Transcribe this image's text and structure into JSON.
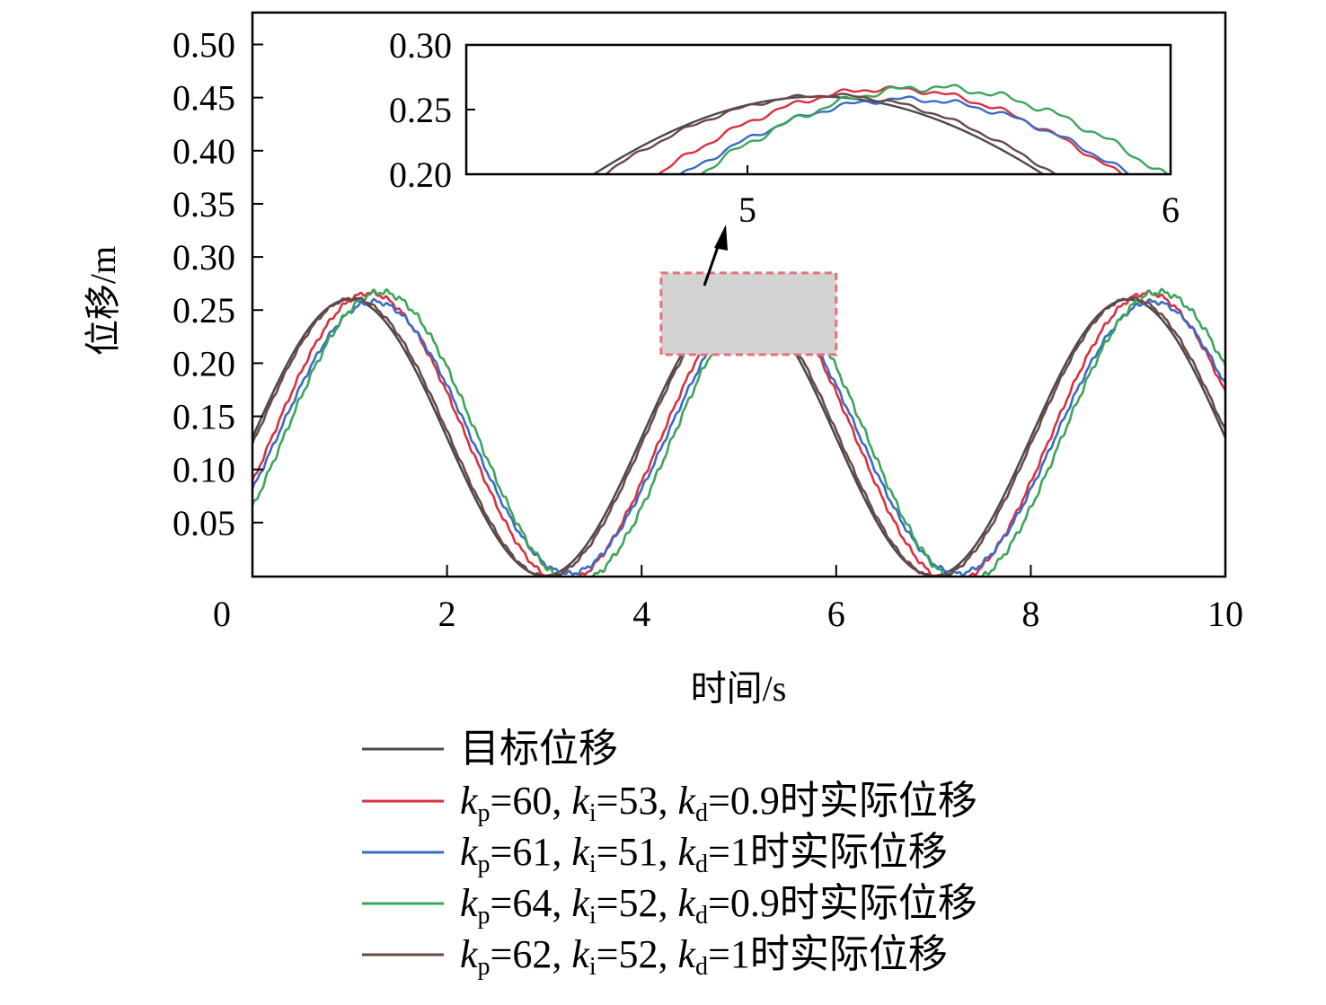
{
  "chart_data": {
    "type": "line",
    "xlabel": "时间/s",
    "ylabel": "位移/m",
    "xlim": [
      0,
      10
    ],
    "ylim": [
      0,
      0.53
    ],
    "xticks": [
      0,
      2,
      4,
      6,
      8,
      10
    ],
    "yticks": [
      0.05,
      0.1,
      0.15,
      0.2,
      0.25,
      0.3,
      0.35,
      0.4,
      0.45,
      0.5
    ],
    "grid": false,
    "legend_position": "bottom",
    "series": [
      {
        "key": "target",
        "name": "目标位移",
        "label_parts": [
          {
            "t": "目标位移"
          }
        ],
        "color": "#4a4a4a",
        "amp": 0.13,
        "phase": 0.0,
        "ripple": 0.0
      },
      {
        "key": "s1",
        "name": "kp=60, ki=53, kd=0.9时实际位移",
        "label_parts": [
          {
            "t": "k",
            "i": true
          },
          {
            "t": "p",
            "sub": true
          },
          {
            "t": "=60, "
          },
          {
            "t": "k",
            "i": true
          },
          {
            "t": "i",
            "sub": true
          },
          {
            "t": "=53, "
          },
          {
            "t": "k",
            "i": true
          },
          {
            "t": "d",
            "sub": true
          },
          {
            "t": "=0.9时实际位移"
          }
        ],
        "color": "#d9303e",
        "amp": 0.136,
        "phase": 0.2,
        "ripple": 0.0015
      },
      {
        "key": "s2",
        "name": "kp=61, ki=51, kd=1时实际位移",
        "label_parts": [
          {
            "t": "k",
            "i": true
          },
          {
            "t": "p",
            "sub": true
          },
          {
            "t": "=61, "
          },
          {
            "t": "k",
            "i": true
          },
          {
            "t": "i",
            "sub": true
          },
          {
            "t": "=51, "
          },
          {
            "t": "k",
            "i": true
          },
          {
            "t": "d",
            "sub": true
          },
          {
            "t": "=1时实际位移"
          }
        ],
        "color": "#3a6bc4",
        "amp": 0.128,
        "phase": 0.25,
        "ripple": 0.0015
      },
      {
        "key": "s3",
        "name": "kp=64, ki=52, kd=0.9时实际位移",
        "label_parts": [
          {
            "t": "k",
            "i": true
          },
          {
            "t": "p",
            "sub": true
          },
          {
            "t": "=64, "
          },
          {
            "t": "k",
            "i": true
          },
          {
            "t": "i",
            "sub": true
          },
          {
            "t": "=52, "
          },
          {
            "t": "k",
            "i": true
          },
          {
            "t": "d",
            "sub": true
          },
          {
            "t": "=0.9时实际位移"
          }
        ],
        "color": "#3aa65a",
        "amp": 0.137,
        "phase": 0.32,
        "ripple": 0.002
      },
      {
        "key": "s4",
        "name": "kp=62, ki=52, kd=1时实际位移",
        "label_parts": [
          {
            "t": "k",
            "i": true
          },
          {
            "t": "p",
            "sub": true
          },
          {
            "t": "=62, "
          },
          {
            "t": "k",
            "i": true
          },
          {
            "t": "i",
            "sub": true
          },
          {
            "t": "=52, "
          },
          {
            "t": "k",
            "i": true
          },
          {
            "t": "d",
            "sub": true
          },
          {
            "t": "=1时实际位移"
          }
        ],
        "color": "#6b4848",
        "amp": 0.131,
        "phase": 0.03,
        "ripple": 0.001
      }
    ],
    "model": {
      "offset": 0.13,
      "period": 4.0,
      "x_start": 0,
      "x_end": 10
    },
    "inset": {
      "xlim": [
        4,
        6
      ],
      "ylim": [
        0.2,
        0.3
      ],
      "xticks": [
        5,
        6
      ],
      "yticks": [
        0.2,
        0.25,
        0.3
      ],
      "tick_labels_x": [
        "5",
        "6"
      ],
      "tick_labels_y": [
        "0.20",
        "0.25",
        "0.30"
      ]
    },
    "highlight_region": {
      "xlim": [
        4.2,
        6.0
      ],
      "ylim": [
        0.208,
        0.285
      ]
    }
  }
}
